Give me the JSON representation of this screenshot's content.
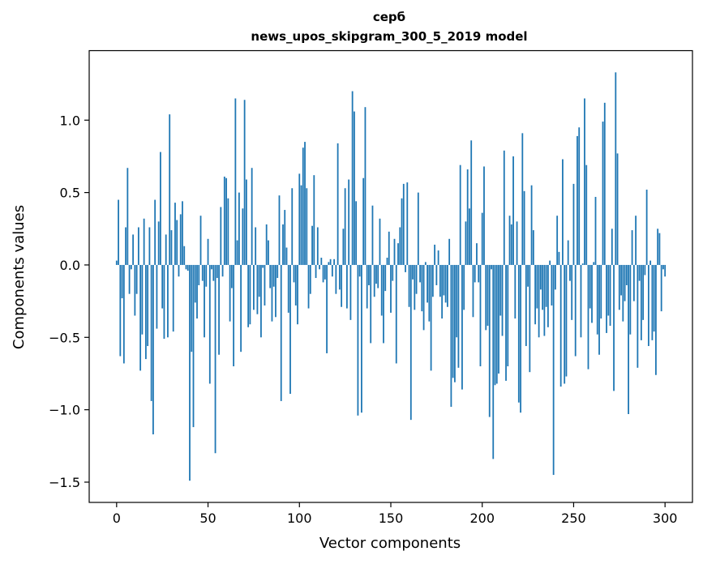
{
  "chart_data": {
    "type": "bar",
    "title_line1": "серб",
    "title_line2": "news_upos_skipgram_300_5_2019 model",
    "xlabel": "Vector components",
    "ylabel": "Components values",
    "xlim": [
      -15,
      315
    ],
    "ylim": [
      -1.64,
      1.48
    ],
    "x_ticks": [
      0,
      50,
      100,
      150,
      200,
      250,
      300
    ],
    "x_tick_labels": [
      "0",
      "50",
      "100",
      "150",
      "200",
      "250",
      "300"
    ],
    "y_ticks": [
      -1.5,
      -1.0,
      -0.5,
      0.0,
      0.5,
      1.0
    ],
    "y_tick_labels": [
      "−1.5",
      "−1.0",
      "−0.5",
      "0.0",
      "0.5",
      "1.0"
    ],
    "bar_color": "#1f77b4",
    "values": [
      0.03,
      0.45,
      -0.63,
      -0.23,
      -0.68,
      0.26,
      0.67,
      -0.2,
      -0.03,
      0.21,
      -0.35,
      -0.2,
      0.26,
      -0.73,
      -0.48,
      0.32,
      -0.65,
      -0.56,
      0.26,
      -0.94,
      -1.17,
      0.45,
      -0.44,
      0.3,
      0.78,
      -0.3,
      -0.51,
      0.21,
      -0.5,
      1.04,
      0.24,
      -0.46,
      0.43,
      0.31,
      -0.08,
      0.35,
      0.44,
      0.13,
      -0.03,
      -0.04,
      -1.49,
      -0.6,
      -1.12,
      -0.26,
      -0.37,
      -0.14,
      0.34,
      -0.11,
      -0.5,
      -0.15,
      0.18,
      -0.82,
      -0.03,
      -0.11,
      -1.3,
      -0.09,
      -0.62,
      0.4,
      -0.08,
      0.61,
      0.6,
      0.46,
      -0.39,
      -0.16,
      -0.7,
      1.15,
      0.17,
      0.5,
      -0.6,
      0.39,
      1.14,
      0.59,
      -0.43,
      -0.41,
      0.67,
      -0.31,
      0.26,
      -0.34,
      -0.22,
      -0.5,
      -0.02,
      -0.28,
      0.28,
      0.17,
      -0.16,
      -0.39,
      -0.15,
      -0.36,
      -0.09,
      0.48,
      -0.94,
      0.28,
      0.38,
      0.12,
      -0.33,
      -0.89,
      0.53,
      -0.12,
      -0.28,
      -0.41,
      0.63,
      0.55,
      0.81,
      0.85,
      0.53,
      -0.3,
      -0.2,
      0.27,
      0.62,
      -0.09,
      0.26,
      -0.03,
      0.05,
      -0.12,
      -0.1,
      -0.61,
      0.02,
      0.04,
      -0.08,
      0.04,
      -0.2,
      0.84,
      -0.17,
      -0.29,
      0.25,
      0.53,
      -0.3,
      0.59,
      -0.38,
      1.2,
      1.06,
      0.44,
      -1.04,
      -0.08,
      -1.02,
      0.6,
      1.09,
      -0.3,
      -0.14,
      -0.54,
      0.41,
      -0.22,
      -0.13,
      -0.16,
      0.32,
      -0.35,
      -0.54,
      -0.18,
      0.05,
      0.23,
      -0.33,
      -0.11,
      0.18,
      -0.68,
      0.15,
      0.26,
      0.46,
      0.56,
      -0.05,
      0.57,
      -0.29,
      -1.07,
      -0.1,
      -0.31,
      -0.2,
      0.5,
      -0.12,
      -0.32,
      -0.45,
      0.02,
      -0.26,
      -0.39,
      -0.73,
      -0.22,
      0.14,
      -0.14,
      0.1,
      -0.22,
      -0.37,
      -0.21,
      -0.26,
      -0.29,
      0.18,
      -0.98,
      -0.78,
      -0.81,
      -0.5,
      -0.71,
      0.69,
      -0.86,
      -0.31,
      0.3,
      0.66,
      0.39,
      0.86,
      -0.36,
      -0.12,
      0.15,
      -0.12,
      -0.7,
      0.36,
      0.68,
      -0.45,
      -0.42,
      -1.05,
      -0.03,
      -1.34,
      -0.83,
      -0.82,
      -0.75,
      -0.35,
      -0.49,
      0.79,
      -0.8,
      -0.7,
      0.34,
      0.28,
      0.75,
      -0.37,
      0.3,
      -0.95,
      -1.02,
      0.91,
      0.51,
      -0.56,
      -0.15,
      -0.74,
      0.55,
      0.24,
      -0.41,
      -0.3,
      -0.5,
      -0.17,
      -0.31,
      -0.49,
      -0.29,
      -0.43,
      0.03,
      -0.28,
      -1.45,
      -0.17,
      0.34,
      0.09,
      -0.84,
      0.73,
      -0.82,
      -0.77,
      0.17,
      -0.11,
      -0.38,
      0.56,
      -0.63,
      0.89,
      0.95,
      -0.5,
      0.01,
      1.15,
      0.69,
      -0.72,
      -0.3,
      -0.4,
      0.02,
      0.47,
      -0.48,
      -0.62,
      -0.37,
      0.99,
      1.12,
      -0.47,
      -0.35,
      -0.42,
      0.25,
      -0.87,
      1.33,
      0.77,
      -0.31,
      -0.21,
      -0.39,
      -0.25,
      -0.14,
      -1.03,
      -0.48,
      0.24,
      -0.25,
      0.34,
      -0.71,
      -0.11,
      -0.52,
      -0.38,
      -0.07,
      0.52,
      -0.56,
      0.03,
      -0.52,
      -0.46,
      -0.76,
      0.25,
      0.22,
      -0.32,
      -0.03,
      -0.08
    ]
  }
}
